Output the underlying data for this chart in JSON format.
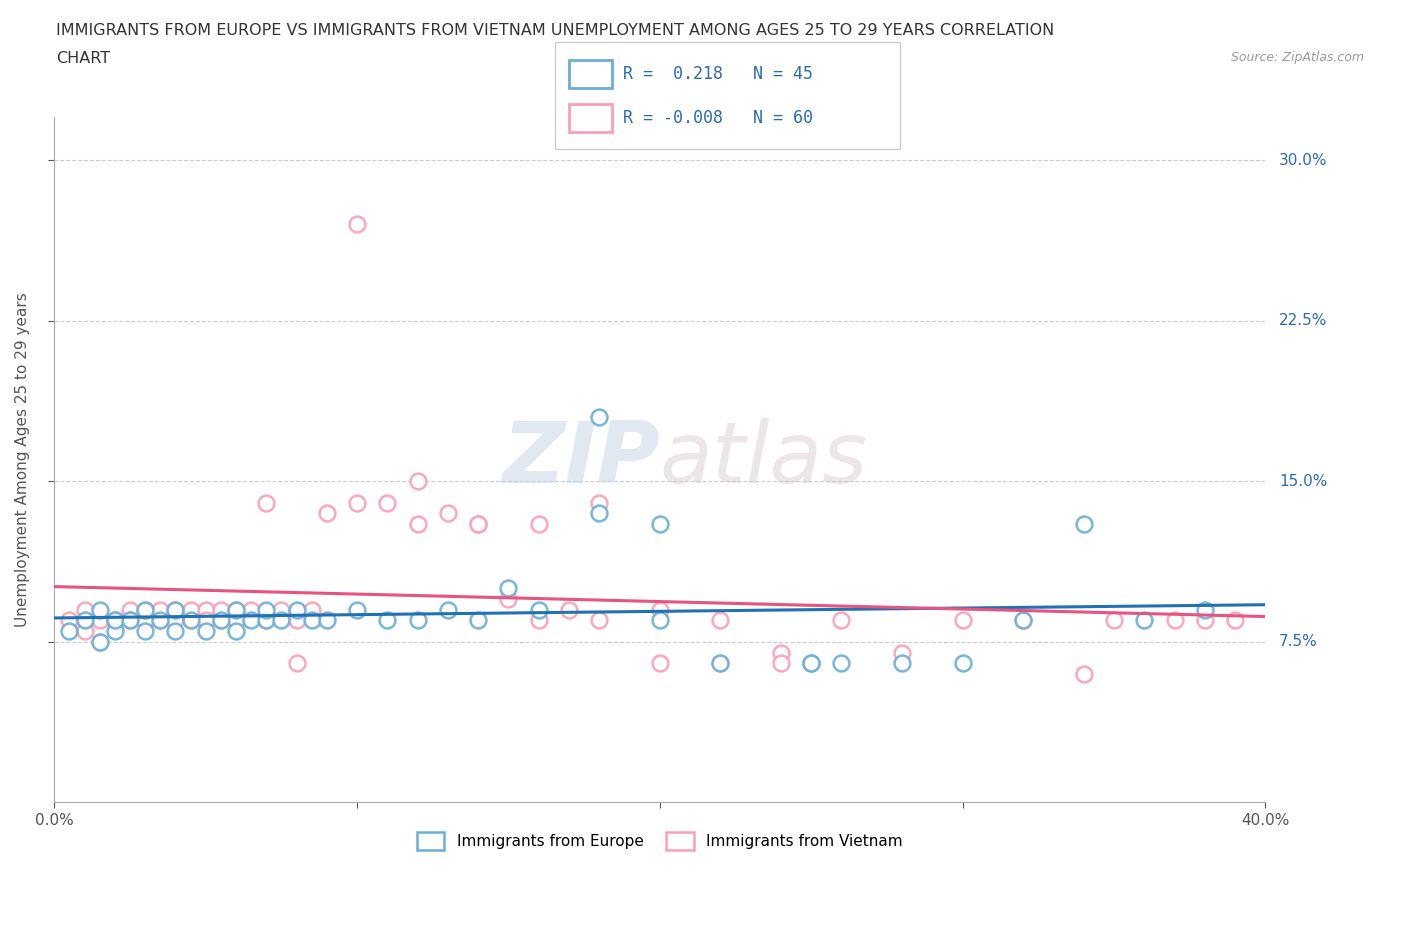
{
  "title_line1": "IMMIGRANTS FROM EUROPE VS IMMIGRANTS FROM VIETNAM UNEMPLOYMENT AMONG AGES 25 TO 29 YEARS CORRELATION",
  "title_line2": "CHART",
  "source_text": "Source: ZipAtlas.com",
  "ylabel": "Unemployment Among Ages 25 to 29 years",
  "xmin": 0.0,
  "xmax": 0.4,
  "ymin": 0.0,
  "ymax": 0.32,
  "yticks": [
    0.075,
    0.15,
    0.225,
    0.3
  ],
  "ytick_labels": [
    "7.5%",
    "15.0%",
    "22.5%",
    "30.0%"
  ],
  "legend_europe_R": "0.218",
  "legend_europe_N": "45",
  "legend_vietnam_R": "-0.008",
  "legend_vietnam_N": "60",
  "europe_color": "#6baed6",
  "vietnam_color": "#fa9fb5",
  "europe_line_color": "#2171b5",
  "vietnam_line_color": "#e75480",
  "watermark_zip": "ZIP",
  "watermark_atlas": "atlas",
  "europe_x": [
    0.005,
    0.01,
    0.015,
    0.015,
    0.02,
    0.02,
    0.025,
    0.03,
    0.03,
    0.035,
    0.04,
    0.04,
    0.045,
    0.05,
    0.055,
    0.06,
    0.06,
    0.065,
    0.07,
    0.07,
    0.075,
    0.08,
    0.085,
    0.09,
    0.1,
    0.11,
    0.12,
    0.13,
    0.14,
    0.15,
    0.16,
    0.18,
    0.2,
    0.22,
    0.25,
    0.26,
    0.28,
    0.3,
    0.32,
    0.34,
    0.36,
    0.38,
    0.18,
    0.2,
    0.25
  ],
  "europe_y": [
    0.08,
    0.085,
    0.075,
    0.09,
    0.08,
    0.085,
    0.085,
    0.08,
    0.09,
    0.085,
    0.08,
    0.09,
    0.085,
    0.08,
    0.085,
    0.08,
    0.09,
    0.085,
    0.085,
    0.09,
    0.085,
    0.09,
    0.085,
    0.085,
    0.09,
    0.085,
    0.085,
    0.09,
    0.085,
    0.1,
    0.09,
    0.135,
    0.085,
    0.065,
    0.065,
    0.065,
    0.065,
    0.065,
    0.085,
    0.13,
    0.085,
    0.09,
    0.18,
    0.13,
    0.065
  ],
  "vietnam_x": [
    0.005,
    0.01,
    0.01,
    0.015,
    0.015,
    0.02,
    0.02,
    0.025,
    0.025,
    0.03,
    0.03,
    0.035,
    0.035,
    0.04,
    0.04,
    0.045,
    0.045,
    0.05,
    0.05,
    0.055,
    0.055,
    0.06,
    0.06,
    0.065,
    0.07,
    0.075,
    0.08,
    0.085,
    0.09,
    0.1,
    0.11,
    0.12,
    0.13,
    0.14,
    0.15,
    0.16,
    0.17,
    0.18,
    0.2,
    0.22,
    0.24,
    0.26,
    0.28,
    0.3,
    0.32,
    0.34,
    0.35,
    0.37,
    0.38,
    0.39,
    0.1,
    0.12,
    0.14,
    0.16,
    0.18,
    0.2,
    0.22,
    0.24,
    0.07,
    0.08
  ],
  "vietnam_y": [
    0.085,
    0.08,
    0.09,
    0.075,
    0.085,
    0.085,
    0.085,
    0.09,
    0.085,
    0.085,
    0.09,
    0.085,
    0.09,
    0.09,
    0.085,
    0.085,
    0.09,
    0.09,
    0.085,
    0.085,
    0.09,
    0.09,
    0.085,
    0.09,
    0.085,
    0.09,
    0.085,
    0.09,
    0.135,
    0.14,
    0.14,
    0.13,
    0.135,
    0.13,
    0.095,
    0.085,
    0.09,
    0.085,
    0.09,
    0.085,
    0.07,
    0.085,
    0.07,
    0.085,
    0.085,
    0.06,
    0.085,
    0.085,
    0.085,
    0.085,
    0.27,
    0.15,
    0.13,
    0.13,
    0.14,
    0.065,
    0.065,
    0.065,
    0.14,
    0.065
  ]
}
